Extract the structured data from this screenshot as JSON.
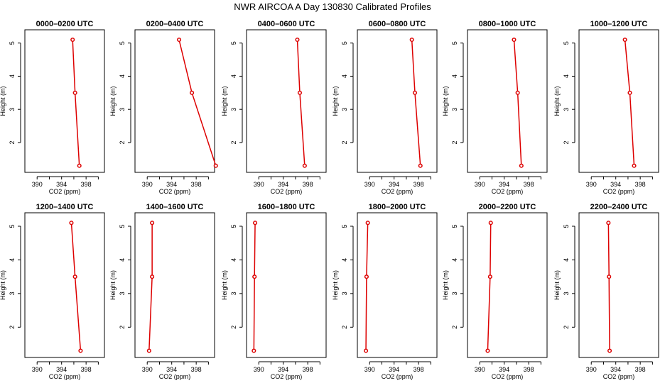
{
  "chart_data": {
    "type": "line",
    "title": "NWR AIRCOA A  Day 130830  Calibrated Profiles",
    "xlabel": "CO2 (ppm)",
    "ylabel": "Height (m)",
    "xlim": [
      388,
      401
    ],
    "ylim": [
      1.1,
      5.4
    ],
    "xticks": [
      "390",
      "394",
      "398"
    ],
    "yticks": [
      "2",
      "3",
      "4",
      "5"
    ],
    "line_color": "#dd0000",
    "panels": [
      {
        "name": "0000–0200 UTC",
        "x": [
          395.8,
          396.2,
          396.9
        ],
        "y": [
          5.1,
          3.5,
          1.3
        ]
      },
      {
        "name": "0200–0400 UTC",
        "x": [
          395.2,
          397.3,
          401.2
        ],
        "y": [
          5.1,
          3.5,
          1.3
        ]
      },
      {
        "name": "0400–0600 UTC",
        "x": [
          396.3,
          396.7,
          397.5
        ],
        "y": [
          5.1,
          3.5,
          1.3
        ]
      },
      {
        "name": "0600–0800 UTC",
        "x": [
          396.9,
          397.4,
          398.3
        ],
        "y": [
          5.1,
          3.5,
          1.3
        ]
      },
      {
        "name": "0800–1000 UTC",
        "x": [
          395.6,
          396.2,
          396.8
        ],
        "y": [
          5.1,
          3.5,
          1.3
        ]
      },
      {
        "name": "1000–1200 UTC",
        "x": [
          395.5,
          396.3,
          397.0
        ],
        "y": [
          5.1,
          3.5,
          1.3
        ]
      },
      {
        "name": "1200–1400 UTC",
        "x": [
          395.6,
          396.2,
          397.1
        ],
        "y": [
          5.1,
          3.5,
          1.3
        ]
      },
      {
        "name": "1400–1600 UTC",
        "x": [
          390.8,
          390.8,
          390.3
        ],
        "y": [
          5.1,
          3.5,
          1.3
        ]
      },
      {
        "name": "1600–1800 UTC",
        "x": [
          389.4,
          389.3,
          389.2
        ],
        "y": [
          5.1,
          3.5,
          1.3
        ]
      },
      {
        "name": "1800–2000 UTC",
        "x": [
          389.7,
          389.5,
          389.4
        ],
        "y": [
          5.1,
          3.5,
          1.3
        ]
      },
      {
        "name": "2000–2200 UTC",
        "x": [
          391.8,
          391.7,
          391.3
        ],
        "y": [
          5.1,
          3.5,
          1.3
        ]
      },
      {
        "name": "2200–2400 UTC",
        "x": [
          392.8,
          392.9,
          393.0
        ],
        "y": [
          5.1,
          3.5,
          1.3
        ]
      }
    ]
  }
}
